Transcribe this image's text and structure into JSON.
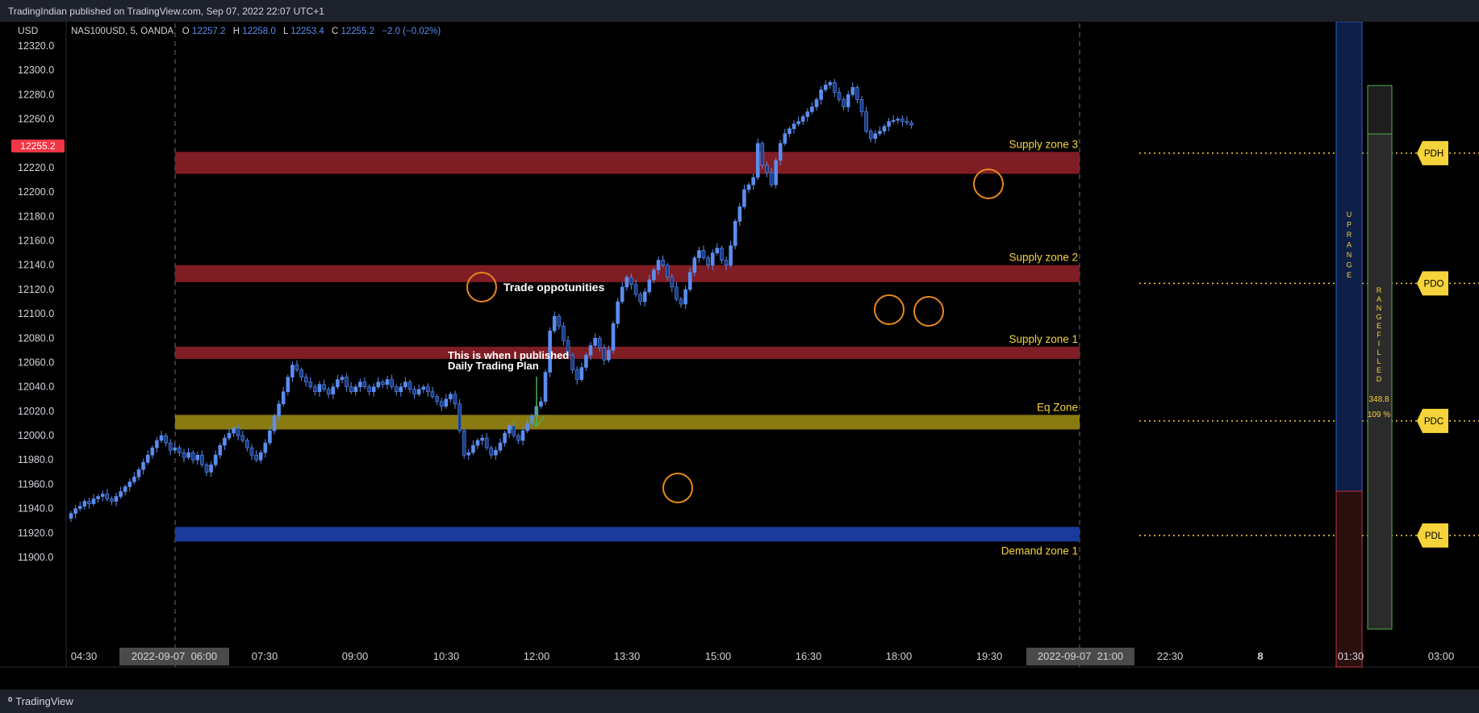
{
  "header": {
    "published_line": "TradingIndian published on TradingView.com, Sep 07, 2022 22:07 UTC+1"
  },
  "footer": {
    "brand": "TradingView"
  },
  "colors": {
    "up": "#5b8def",
    "zone_supply": "#7f1d24",
    "zone_eq": "#8a7a12",
    "zone_demand": "#1a3a9c",
    "label_yellow": "#f5d33a",
    "circle": "#e8871e",
    "price_tag": "#f23645",
    "text": "#d1d4dc"
  },
  "chart_data": {
    "type": "candlestick",
    "symbol_line": {
      "symbol": "NAS100USD, 5, OANDA",
      "o_label": "O",
      "o": "12257.2",
      "h_label": "H",
      "h": "12258.0",
      "l_label": "L",
      "l": "12253.4",
      "c_label": "C",
      "c": "12255.2",
      "change": "−2.0 (−0.02%)"
    },
    "currency": "USD",
    "ylim": [
      11890,
      12330
    ],
    "y_ticks": [
      "12320.0",
      "12300.0",
      "12280.0",
      "12260.0",
      "12240.0",
      "12220.0",
      "12200.0",
      "12180.0",
      "12160.0",
      "12140.0",
      "12120.0",
      "12100.0",
      "12080.0",
      "12060.0",
      "12040.0",
      "12020.0",
      "12000.0",
      "11980.0",
      "11960.0",
      "11940.0",
      "11920.0",
      "11900.0"
    ],
    "x_ticks": [
      "04:30",
      "07:30",
      "09:00",
      "10:30",
      "12:00",
      "13:30",
      "15:00",
      "16:30",
      "18:00",
      "19:30",
      "22:30",
      "8",
      "01:30",
      "03:00"
    ],
    "x_highlight_labels": [
      "2022-09-07  06:00",
      "2022-09-07  21:00"
    ],
    "last_price": "12255.2",
    "zones": [
      {
        "name": "Supply zone 3",
        "low": 12215,
        "high": 12233,
        "kind": "supply"
      },
      {
        "name": "Supply zone 2",
        "low": 12126,
        "high": 12140,
        "kind": "supply"
      },
      {
        "name": "Supply zone 1",
        "low": 12063,
        "high": 12073,
        "kind": "supply"
      },
      {
        "name": "Eq Zone",
        "low": 12005,
        "high": 12017,
        "kind": "eq"
      },
      {
        "name": "Demand zone 1",
        "low": 11913,
        "high": 11925,
        "kind": "demand"
      }
    ],
    "levels": [
      {
        "name": "PDH",
        "value": 12232
      },
      {
        "name": "PDO",
        "value": 12125
      },
      {
        "name": "PDC",
        "value": 12012
      },
      {
        "name": "PDL",
        "value": 11918
      }
    ],
    "range_panel": {
      "up_text": "UP RANGE",
      "filled_text": "RANGE FILLED",
      "value": "348.8",
      "percent": "109 %"
    },
    "annotations": {
      "trade_opportunities": "Trade oppotunities",
      "publish_note_line1": "This is when I published",
      "publish_note_line2": "Daily Trading Plan"
    },
    "closes": [
      11936,
      11940,
      11942,
      11946,
      11944,
      11948,
      11950,
      11952,
      11948,
      11946,
      11950,
      11954,
      11958,
      11962,
      11966,
      11972,
      11978,
      11984,
      11990,
      11996,
      12000,
      11994,
      11988,
      11990,
      11986,
      11982,
      11986,
      11980,
      11984,
      11976,
      11970,
      11976,
      11984,
      11992,
      11998,
      12002,
      12006,
      12000,
      11996,
      11990,
      11984,
      11980,
      11986,
      11994,
      12004,
      12016,
      12026,
      12036,
      12048,
      12058,
      12054,
      12048,
      12044,
      12040,
      12036,
      12042,
      12038,
      12034,
      12040,
      12046,
      12048,
      12040,
      12036,
      12040,
      12044,
      12040,
      12036,
      12040,
      12044,
      12042,
      12046,
      12040,
      12036,
      12040,
      12044,
      12038,
      12034,
      12038,
      12040,
      12036,
      12032,
      12028,
      12024,
      12030,
      12034,
      12026,
      12004,
      11984,
      11986,
      11992,
      11996,
      11998,
      11990,
      11984,
      11988,
      11994,
      12002,
      12008,
      12000,
      11996,
      12004,
      12010,
      12016,
      12024,
      12028,
      12052,
      12086,
      12098,
      12090,
      12078,
      12066,
      12054,
      12046,
      12056,
      12066,
      12074,
      12080,
      12072,
      12062,
      12070,
      12092,
      12110,
      12122,
      12130,
      12124,
      12116,
      12110,
      12118,
      12128,
      12136,
      12144,
      12140,
      12130,
      12122,
      12112,
      12108,
      12120,
      12134,
      12146,
      12152,
      12146,
      12140,
      12150,
      12154,
      12144,
      12140,
      12156,
      12176,
      12188,
      12202,
      12206,
      12212,
      12240,
      12222,
      12216,
      12206,
      12226,
      12240,
      12248,
      12252,
      12256,
      12258,
      12262,
      12266,
      12270,
      12276,
      12284,
      12288,
      12290,
      12282,
      12276,
      12270,
      12280,
      12286,
      12276,
      12266,
      12250,
      12244,
      12248,
      12250,
      12254,
      12258,
      12259,
      12260,
      12258,
      12257,
      12255
    ]
  }
}
